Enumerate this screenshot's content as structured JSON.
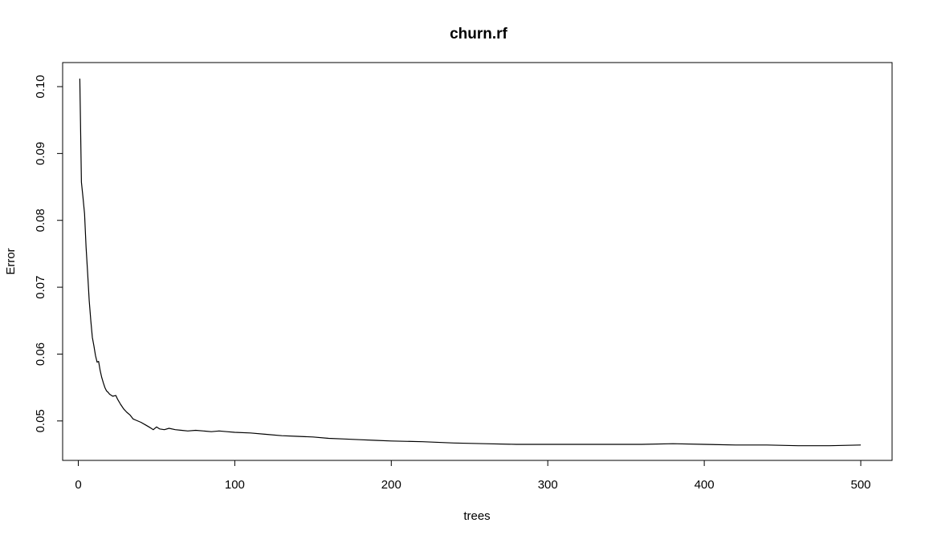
{
  "chart_data": {
    "type": "line",
    "title": "churn.rf",
    "xlabel": "trees",
    "ylabel": "Error",
    "xlim": [
      -10,
      520
    ],
    "ylim": [
      0.0441,
      0.1036
    ],
    "x_ticks": [
      0,
      100,
      200,
      300,
      400,
      500
    ],
    "x_tick_labels": [
      "0",
      "100",
      "200",
      "300",
      "400",
      "500"
    ],
    "y_ticks": [
      0.05,
      0.06,
      0.07,
      0.08,
      0.09,
      0.1
    ],
    "y_tick_labels": [
      "0.05",
      "0.06",
      "0.07",
      "0.08",
      "0.09",
      "0.10"
    ],
    "grid": false,
    "legend": "none",
    "series": [
      {
        "color": "#000000",
        "x": [
          1,
          2,
          3,
          4,
          5,
          6,
          7,
          8,
          9,
          10,
          11,
          12,
          13,
          14,
          15,
          16,
          17,
          18,
          19,
          20,
          22,
          24,
          25,
          27,
          29,
          31,
          33,
          35,
          37,
          40,
          43,
          46,
          48,
          50,
          52,
          55,
          58,
          62,
          66,
          70,
          75,
          80,
          85,
          90,
          95,
          100,
          110,
          120,
          130,
          140,
          150,
          160,
          170,
          180,
          190,
          200,
          220,
          240,
          260,
          280,
          300,
          320,
          340,
          360,
          380,
          400,
          420,
          440,
          460,
          480,
          500
        ],
        "y": [
          0.1012,
          0.0857,
          0.0835,
          0.081,
          0.076,
          0.072,
          0.068,
          0.065,
          0.0625,
          0.0612,
          0.0598,
          0.0588,
          0.0589,
          0.0575,
          0.0565,
          0.0557,
          0.055,
          0.0545,
          0.0543,
          0.054,
          0.0537,
          0.0538,
          0.0533,
          0.0525,
          0.0518,
          0.0513,
          0.0509,
          0.0503,
          0.0501,
          0.0498,
          0.0494,
          0.049,
          0.0487,
          0.0491,
          0.0488,
          0.0487,
          0.0489,
          0.0487,
          0.0486,
          0.0485,
          0.0486,
          0.0485,
          0.0484,
          0.0485,
          0.0484,
          0.0483,
          0.0482,
          0.048,
          0.0478,
          0.0477,
          0.0476,
          0.0474,
          0.0473,
          0.0472,
          0.0471,
          0.047,
          0.0469,
          0.0467,
          0.0466,
          0.0465,
          0.0465,
          0.0465,
          0.0465,
          0.0465,
          0.0466,
          0.0465,
          0.0464,
          0.0464,
          0.0463,
          0.0463,
          0.0464
        ]
      }
    ]
  }
}
